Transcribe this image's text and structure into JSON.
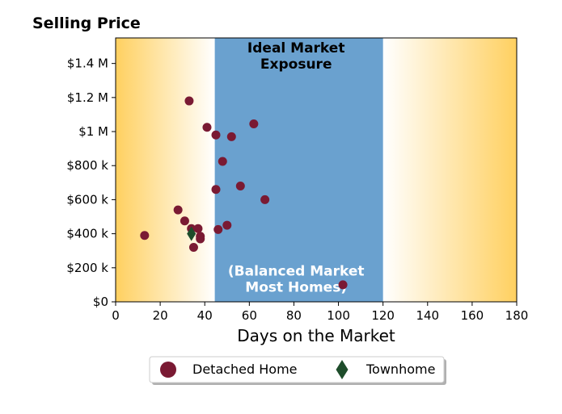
{
  "chart_data": {
    "type": "scatter",
    "title": "Selling Price",
    "xlabel": "Days on the Market",
    "ylabel": "",
    "xlim": [
      0,
      180
    ],
    "ylim": [
      0,
      1550000
    ],
    "x_ticks": [
      0,
      20,
      40,
      60,
      80,
      100,
      120,
      140,
      160,
      180
    ],
    "x_tick_labels": [
      "0",
      "20",
      "40",
      "60",
      "80",
      "100",
      "120",
      "140",
      "160",
      "180"
    ],
    "y_ticks": [
      0,
      200000,
      400000,
      600000,
      800000,
      1000000,
      1200000,
      1400000
    ],
    "y_tick_labels": [
      "$0",
      "$200 k",
      "$400 k",
      "$600 k",
      "$800 k",
      "$1 M",
      "$1.2 M",
      "$1.4 M"
    ],
    "grid": false,
    "legend_position": "bottom-center",
    "annotations": [
      {
        "text_lines": [
          "Ideal Market",
          "Exposure"
        ],
        "x": 81,
        "y_top": 1540000,
        "color": "#000000"
      },
      {
        "text_lines": [
          "(Balanced Market",
          "Most Homes)"
        ],
        "x": 81,
        "y_top": 230000,
        "color": "#ffffff"
      }
    ],
    "bands": [
      {
        "from": 44.5,
        "to": 120,
        "color": "#6aa1cf"
      }
    ],
    "gradients": {
      "left": {
        "from": 0,
        "to": 44.5,
        "edge_color": "#ffd060",
        "inner_color": "#ffffff"
      },
      "right": {
        "from": 120,
        "to": 180,
        "edge_color": "#ffd060",
        "inner_color": "#ffffff"
      }
    },
    "series": [
      {
        "name": "Detached Home",
        "marker": "circle",
        "color": "#7a1a33",
        "points": [
          {
            "x": 13,
            "y": 390000
          },
          {
            "x": 28,
            "y": 540000
          },
          {
            "x": 31,
            "y": 475000
          },
          {
            "x": 33,
            "y": 1180000
          },
          {
            "x": 34,
            "y": 430000
          },
          {
            "x": 35,
            "y": 320000
          },
          {
            "x": 37,
            "y": 430000
          },
          {
            "x": 38,
            "y": 385000
          },
          {
            "x": 38,
            "y": 370000
          },
          {
            "x": 41,
            "y": 1025000
          },
          {
            "x": 45,
            "y": 980000
          },
          {
            "x": 45,
            "y": 660000
          },
          {
            "x": 46,
            "y": 425000
          },
          {
            "x": 48,
            "y": 825000
          },
          {
            "x": 50,
            "y": 450000
          },
          {
            "x": 52,
            "y": 970000
          },
          {
            "x": 56,
            "y": 680000
          },
          {
            "x": 62,
            "y": 1045000
          },
          {
            "x": 67,
            "y": 600000
          },
          {
            "x": 102,
            "y": 100000
          }
        ]
      },
      {
        "name": "Townhome",
        "marker": "diamond",
        "color": "#1e4d2b",
        "points": [
          {
            "x": 34,
            "y": 400000
          }
        ]
      }
    ]
  }
}
